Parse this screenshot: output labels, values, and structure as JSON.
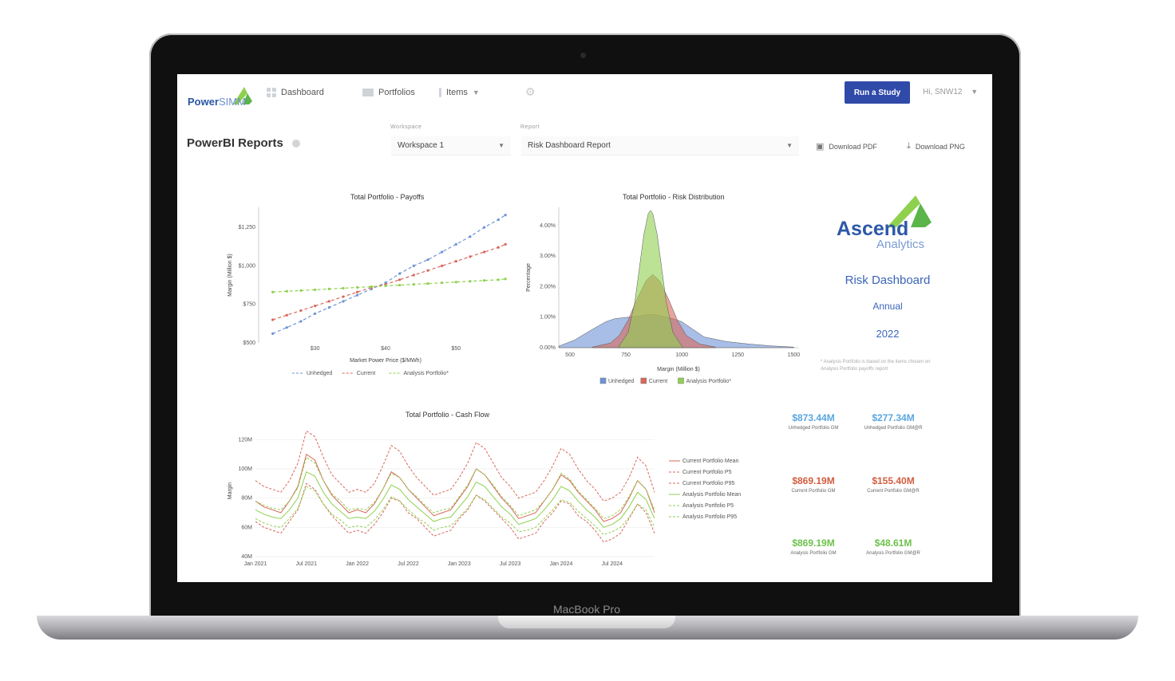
{
  "device": {
    "label": "MacBook Pro"
  },
  "nav": {
    "logo_main": "Power",
    "logo_sub": "SIMM",
    "dashboard": "Dashboard",
    "portfolios": "Portfolios",
    "items": "Items",
    "run_study": "Run a Study",
    "user": "Hi, SNW12"
  },
  "toolbar": {
    "title": "PowerBI Reports",
    "workspace_label": "Workspace",
    "workspace_value": "Workspace 1",
    "report_label": "Report",
    "report_value": "Risk Dashboard Report",
    "download_pdf": "Download PDF",
    "download_png": "Download PNG"
  },
  "branding": {
    "ascend": "Ascend",
    "analytics": "Analytics",
    "title": "Risk Dashboard",
    "period": "Annual",
    "year": "2022",
    "note": "* Analysis Portfolio is based on the items chosen on Analysis Portfolio payoffs report"
  },
  "colors": {
    "unhedged": "#6e93d6",
    "current": "#d9675a",
    "analysis": "#8fd14f",
    "accent": "#2f4aa8"
  },
  "kpis": [
    {
      "value": "$873.44M",
      "label": "Unhedged Portfolio GM",
      "color": "#5aa6e0"
    },
    {
      "value": "$277.34M",
      "label": "Unhedged Portfolio GM@R",
      "color": "#5aa6e0"
    },
    {
      "value": "$869.19M",
      "label": "Current Portfolio GM",
      "color": "#d35c3f"
    },
    {
      "value": "$155.40M",
      "label": "Current Portfolio GM@R",
      "color": "#d35c3f"
    },
    {
      "value": "$869.19M",
      "label": "Analysis Portfolio GM",
      "color": "#6cc24a"
    },
    {
      "value": "$48.61M",
      "label": "Analysis Portfolio GM@R",
      "color": "#6cc24a"
    }
  ],
  "chart_data": [
    {
      "type": "scatter",
      "title": "Total Portfolio - Payoffs",
      "xlabel": "Market Power Price ($/MWh)",
      "ylabel": "Margin (Million $)",
      "xlim": [
        22,
        58
      ],
      "ylim": [
        500,
        1380
      ],
      "x_ticks": [
        "$30",
        "$40",
        "$50"
      ],
      "x_tick_values": [
        30,
        40,
        50
      ],
      "y_ticks": [
        "$500",
        "$750",
        "$1,000",
        "$1,250"
      ],
      "y_tick_values": [
        500,
        750,
        1000,
        1250
      ],
      "legend": "bottom",
      "series": [
        {
          "name": "Unhedged",
          "color": "#6e93d6",
          "x": [
            24,
            26,
            28,
            30,
            32,
            34,
            36,
            38,
            40,
            42,
            44,
            46,
            48,
            50,
            52,
            54,
            56,
            57
          ],
          "y": [
            560,
            600,
            640,
            690,
            730,
            770,
            810,
            850,
            890,
            950,
            1000,
            1040,
            1090,
            1140,
            1190,
            1250,
            1300,
            1330
          ]
        },
        {
          "name": "Current",
          "color": "#d9675a",
          "x": [
            24,
            26,
            28,
            30,
            32,
            34,
            36,
            38,
            40,
            42,
            44,
            46,
            48,
            50,
            52,
            54,
            56,
            57
          ],
          "y": [
            650,
            680,
            710,
            740,
            770,
            800,
            830,
            860,
            880,
            910,
            940,
            970,
            1000,
            1030,
            1060,
            1090,
            1120,
            1140
          ]
        },
        {
          "name": "Analysis Portfolio*",
          "color": "#8fd14f",
          "x": [
            24,
            26,
            28,
            30,
            32,
            34,
            36,
            38,
            40,
            42,
            44,
            46,
            48,
            50,
            52,
            54,
            56,
            57
          ],
          "y": [
            830,
            835,
            840,
            845,
            850,
            855,
            860,
            865,
            870,
            875,
            880,
            885,
            890,
            895,
            900,
            905,
            910,
            915
          ]
        }
      ]
    },
    {
      "type": "area",
      "title": "Total Portfolio - Risk Distribution",
      "xlabel": "Margin (Million $)",
      "ylabel": "Percentage",
      "xlim": [
        450,
        1520
      ],
      "ylim": [
        0,
        4.6
      ],
      "x_ticks": [
        "500",
        "750",
        "1000",
        "1250",
        "1500"
      ],
      "x_tick_values": [
        500,
        750,
        1000,
        1250,
        1500
      ],
      "y_ticks": [
        "0.00%",
        "1.00%",
        "2.00%",
        "3.00%",
        "4.00%"
      ],
      "y_tick_values": [
        0,
        1,
        2,
        3,
        4
      ],
      "legend": "bottom",
      "series": [
        {
          "name": "Unhedged",
          "color": "#6e93d6",
          "x": [
            450,
            520,
            600,
            660,
            700,
            760,
            820,
            870,
            900,
            960,
            1000,
            1050,
            1100,
            1200,
            1300,
            1400,
            1500
          ],
          "y": [
            0.05,
            0.25,
            0.6,
            0.85,
            0.95,
            1.0,
            1.05,
            1.1,
            1.05,
            0.95,
            0.85,
            0.6,
            0.35,
            0.2,
            0.12,
            0.06,
            0.02
          ]
        },
        {
          "name": "Current",
          "color": "#d9675a",
          "x": [
            600,
            680,
            720,
            760,
            800,
            840,
            870,
            900,
            940,
            980,
            1020,
            1080,
            1150
          ],
          "y": [
            0.02,
            0.15,
            0.4,
            0.9,
            1.6,
            2.2,
            2.4,
            2.2,
            1.6,
            0.9,
            0.4,
            0.12,
            0.02
          ]
        },
        {
          "name": "Analysis Portfolio*",
          "color": "#8fd14f",
          "x": [
            720,
            760,
            790,
            810,
            830,
            850,
            860,
            870,
            890,
            910,
            930,
            960,
            1000
          ],
          "y": [
            0.05,
            0.5,
            1.5,
            2.6,
            3.7,
            4.4,
            4.5,
            4.4,
            3.7,
            2.6,
            1.5,
            0.5,
            0.05
          ]
        }
      ]
    },
    {
      "type": "line",
      "title": "Total Portfolio - Cash Flow",
      "ylabel": "Margin",
      "xlabel": "",
      "ylim": [
        40,
        130
      ],
      "x_ticks": [
        "Jan 2021",
        "Jul 2021",
        "Jan 2022",
        "Jul 2022",
        "Jan 2023",
        "Jul 2023",
        "Jan 2024",
        "Jul 2024"
      ],
      "y_ticks": [
        "40M",
        "60M",
        "80M",
        "100M",
        "120M"
      ],
      "y_tick_values": [
        40,
        60,
        80,
        100,
        120
      ],
      "legend": "right",
      "months": 48,
      "series": [
        {
          "name": "Current Portfolio Mean",
          "color": "#d9675a",
          "dash": "",
          "values": [
            78,
            74,
            72,
            70,
            78,
            88,
            110,
            106,
            92,
            82,
            76,
            70,
            72,
            70,
            76,
            86,
            98,
            94,
            86,
            80,
            74,
            68,
            70,
            72,
            80,
            88,
            100,
            96,
            88,
            80,
            74,
            66,
            68,
            70,
            78,
            86,
            96,
            92,
            84,
            78,
            72,
            64,
            66,
            70,
            80,
            92,
            86,
            70
          ]
        },
        {
          "name": "Current Portfolio P5",
          "color": "#d9675a",
          "dash": "3,2",
          "values": [
            64,
            60,
            58,
            56,
            64,
            72,
            90,
            86,
            76,
            68,
            62,
            56,
            58,
            56,
            62,
            70,
            80,
            78,
            70,
            66,
            60,
            54,
            56,
            58,
            66,
            72,
            82,
            78,
            72,
            66,
            60,
            52,
            54,
            56,
            64,
            70,
            78,
            76,
            68,
            64,
            58,
            50,
            52,
            56,
            66,
            76,
            70,
            56
          ]
        },
        {
          "name": "Current Portfolio P95",
          "color": "#d9675a",
          "dash": "3,2",
          "values": [
            92,
            88,
            86,
            84,
            92,
            104,
            126,
            122,
            108,
            96,
            90,
            84,
            86,
            84,
            90,
            102,
            116,
            112,
            102,
            94,
            88,
            82,
            84,
            86,
            94,
            104,
            118,
            114,
            104,
            94,
            88,
            80,
            82,
            84,
            92,
            102,
            114,
            110,
            100,
            92,
            86,
            78,
            80,
            84,
            94,
            108,
            102,
            84
          ]
        },
        {
          "name": "Analysis Portfolio Mean",
          "color": "#8fd14f",
          "dash": "",
          "values": [
            72,
            69,
            67,
            66,
            72,
            80,
            98,
            95,
            84,
            76,
            71,
            66,
            67,
            66,
            71,
            79,
            89,
            86,
            79,
            74,
            69,
            64,
            66,
            67,
            74,
            81,
            91,
            88,
            81,
            74,
            69,
            62,
            64,
            66,
            72,
            79,
            88,
            85,
            78,
            72,
            67,
            60,
            62,
            66,
            74,
            84,
            79,
            66
          ]
        },
        {
          "name": "Analysis Portfolio P5",
          "color": "#8fd14f",
          "dash": "3,2",
          "values": [
            66,
            63,
            61,
            60,
            66,
            73,
            88,
            85,
            76,
            69,
            65,
            60,
            61,
            60,
            65,
            72,
            81,
            78,
            72,
            67,
            63,
            58,
            60,
            61,
            67,
            73,
            82,
            79,
            73,
            67,
            63,
            57,
            58,
            60,
            66,
            72,
            79,
            77,
            71,
            66,
            61,
            55,
            57,
            60,
            67,
            76,
            72,
            60
          ]
        },
        {
          "name": "Analysis Portfolio P95",
          "color": "#8fd14f",
          "dash": "3,2",
          "values": [
            78,
            75,
            73,
            72,
            78,
            87,
            108,
            104,
            92,
            83,
            78,
            72,
            73,
            72,
            77,
            86,
            97,
            94,
            86,
            81,
            75,
            70,
            72,
            73,
            81,
            89,
            100,
            96,
            89,
            81,
            75,
            68,
            70,
            72,
            78,
            86,
            97,
            93,
            85,
            79,
            73,
            66,
            68,
            72,
            81,
            92,
            86,
            72
          ]
        }
      ]
    }
  ]
}
